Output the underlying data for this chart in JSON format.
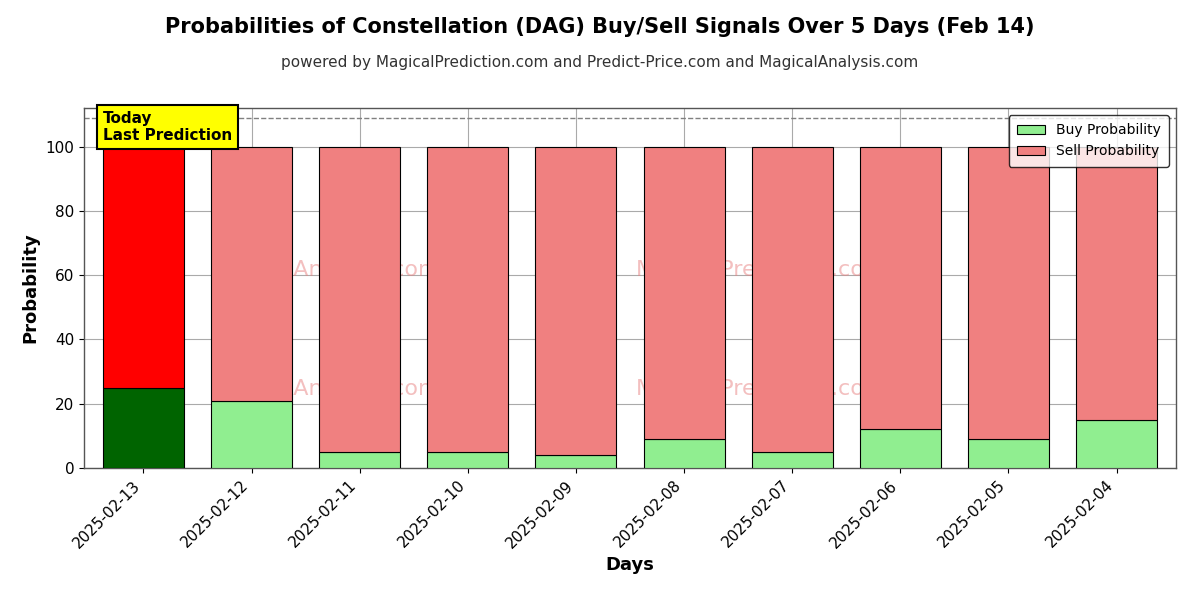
{
  "title": "Probabilities of Constellation (DAG) Buy/Sell Signals Over 5 Days (Feb 14)",
  "subtitle": "powered by MagicalPrediction.com and Predict-Price.com and MagicalAnalysis.com",
  "xlabel": "Days",
  "ylabel": "Probability",
  "categories": [
    "2025-02-13",
    "2025-02-12",
    "2025-02-11",
    "2025-02-10",
    "2025-02-09",
    "2025-02-08",
    "2025-02-07",
    "2025-02-06",
    "2025-02-05",
    "2025-02-04"
  ],
  "buy_values": [
    25,
    21,
    5,
    5,
    4,
    9,
    5,
    12,
    9,
    15
  ],
  "sell_values": [
    75,
    79,
    95,
    95,
    96,
    91,
    95,
    88,
    91,
    85
  ],
  "today_buy_color": "#006400",
  "today_sell_color": "#FF0000",
  "buy_color": "#90EE90",
  "sell_color": "#F08080",
  "bar_edge_color": "#000000",
  "today_annotation_bg": "#FFFF00",
  "today_annotation_text": "Today\nLast Prediction",
  "ylim": [
    0,
    112
  ],
  "yticks": [
    0,
    20,
    40,
    60,
    80,
    100
  ],
  "dashed_line_y": 109,
  "legend_buy_label": "Buy Probability",
  "legend_sell_label": "Sell Probability",
  "title_fontsize": 15,
  "subtitle_fontsize": 11,
  "axis_label_fontsize": 13,
  "tick_fontsize": 11,
  "legend_fontsize": 10,
  "bg_color": "#FFFFFF",
  "grid_color": "#AAAAAA",
  "bar_width": 0.75
}
